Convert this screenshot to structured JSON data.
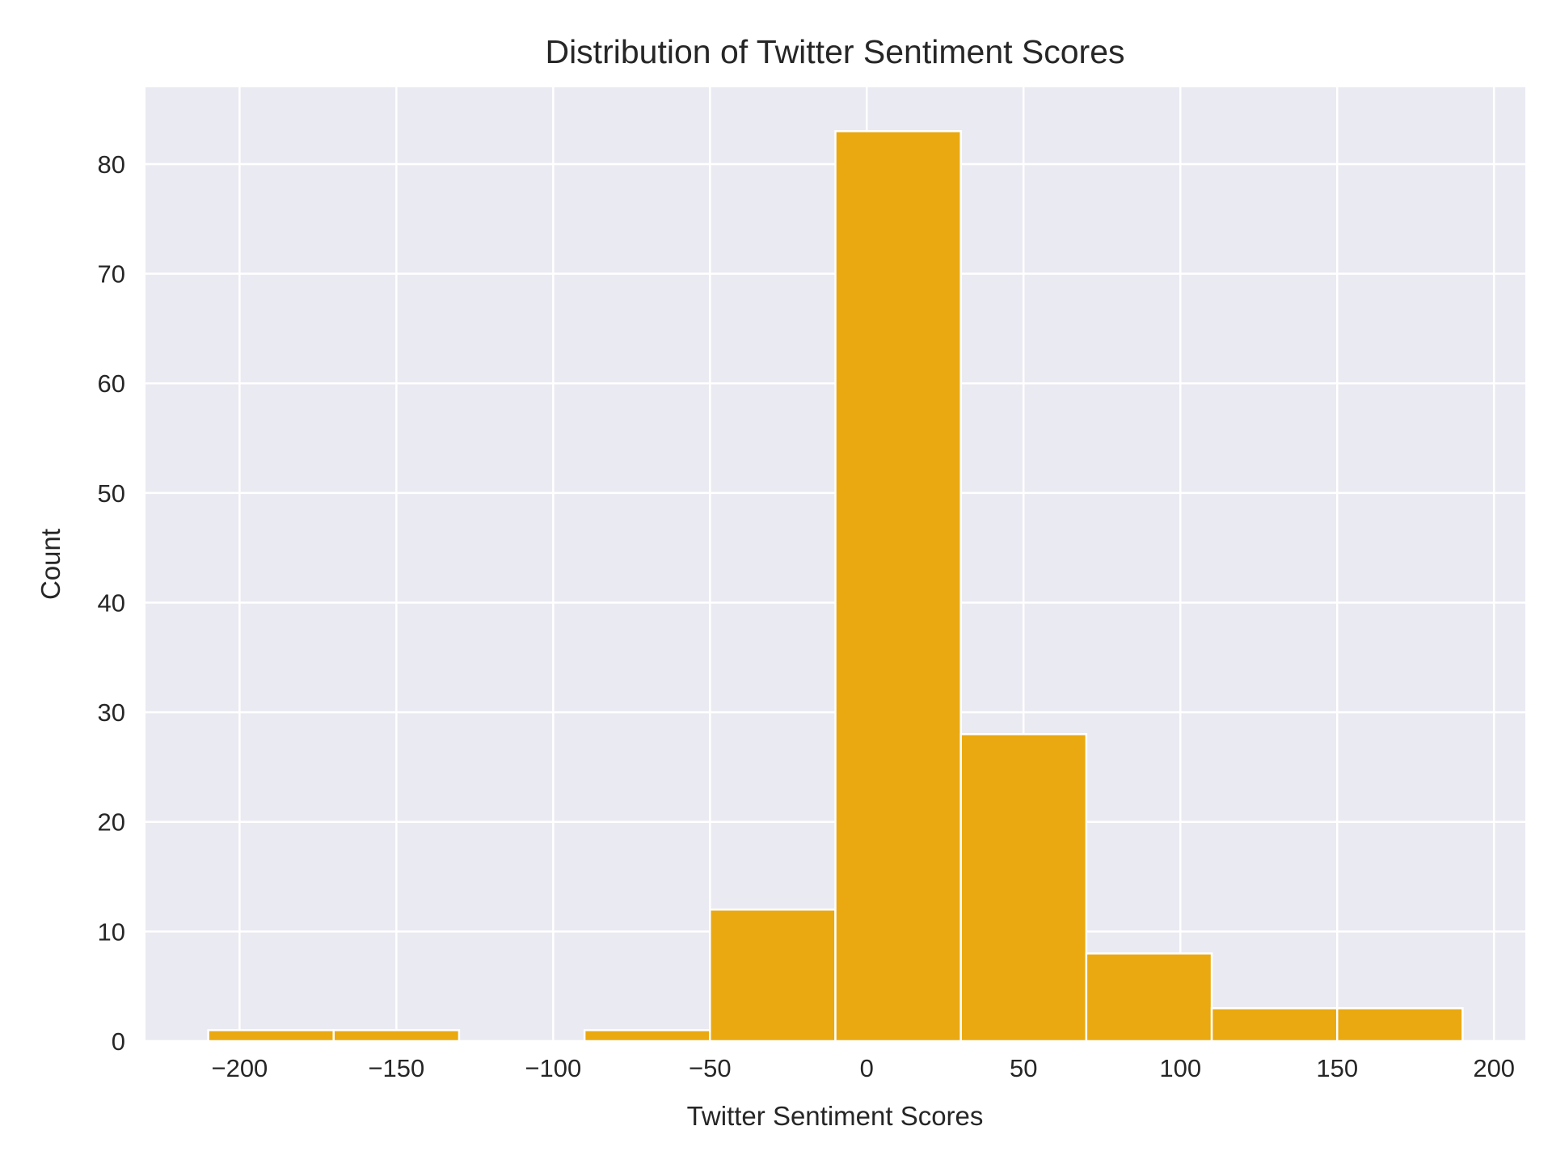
{
  "chart_data": {
    "type": "bar",
    "title": "Distribution of Twitter Sentiment Scores",
    "xlabel": "Twitter Sentiment Scores",
    "ylabel": "Count",
    "xlim": [
      -230,
      210
    ],
    "ylim": [
      0,
      87
    ],
    "x_ticks": [
      -200,
      -150,
      -100,
      -50,
      0,
      50,
      100,
      150,
      200
    ],
    "x_tick_labels": [
      "−200",
      "−150",
      "−100",
      "−50",
      "0",
      "50",
      "100",
      "150",
      "200"
    ],
    "y_ticks": [
      0,
      10,
      20,
      30,
      40,
      50,
      60,
      70,
      80
    ],
    "y_tick_labels": [
      "0",
      "10",
      "20",
      "30",
      "40",
      "50",
      "60",
      "70",
      "80"
    ],
    "bin_edges": [
      -210,
      -170,
      -130,
      -90,
      -50,
      -10,
      30,
      70,
      110,
      150,
      190
    ],
    "values": [
      1,
      1,
      0,
      1,
      12,
      83,
      28,
      8,
      3,
      3
    ],
    "grid": true,
    "colors": {
      "bar": "#eaa911",
      "background": "#eaeaf2",
      "grid": "#ffffff",
      "text": "#262626"
    }
  }
}
